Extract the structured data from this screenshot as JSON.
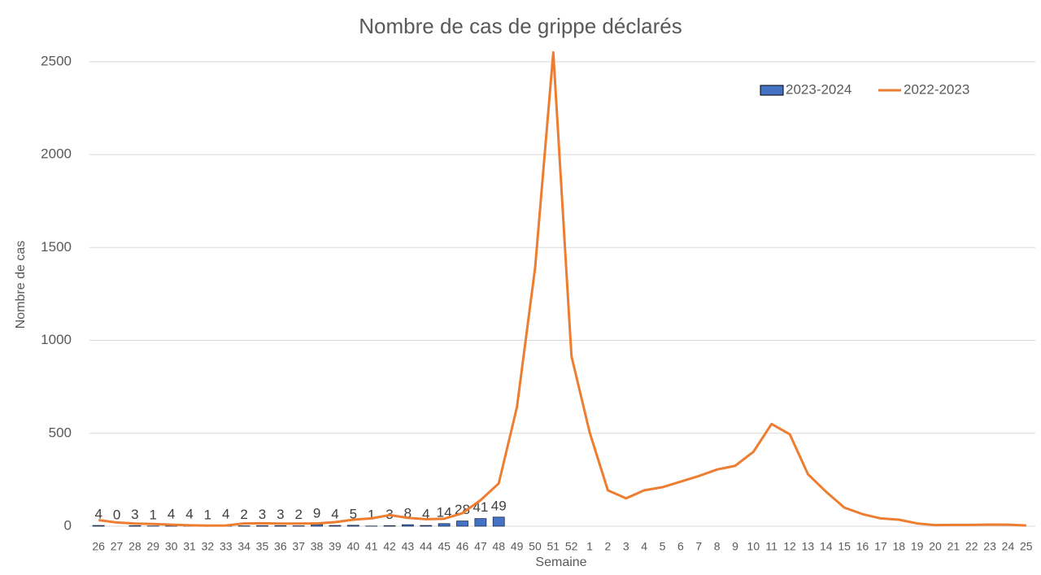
{
  "chart_data": {
    "type": "bar+line",
    "title": "Nombre de cas de grippe déclarés",
    "y_label": "Nombre de cas",
    "x_label": "Semaine",
    "categories": [
      "26",
      "27",
      "28",
      "29",
      "30",
      "31",
      "32",
      "33",
      "34",
      "35",
      "36",
      "37",
      "38",
      "39",
      "40",
      "41",
      "42",
      "43",
      "44",
      "45",
      "46",
      "47",
      "48",
      "49",
      "50",
      "51",
      "52",
      "1",
      "2",
      "3",
      "4",
      "5",
      "6",
      "7",
      "8",
      "9",
      "10",
      "11",
      "12",
      "13",
      "14",
      "15",
      "16",
      "17",
      "18",
      "19",
      "20",
      "21",
      "22",
      "23",
      "24",
      "25"
    ],
    "ylim": [
      0,
      2600
    ],
    "yticks": [
      0,
      500,
      1000,
      1500,
      2000,
      2500
    ],
    "grid": true,
    "legend": "top-right",
    "series": [
      {
        "name": "2023-2024",
        "kind": "bar",
        "color": "#4472c4",
        "values": [
          4,
          0,
          3,
          1,
          4,
          4,
          1,
          4,
          2,
          3,
          3,
          2,
          9,
          4,
          5,
          1,
          3,
          8,
          4,
          14,
          28,
          41,
          49,
          null,
          null,
          null,
          null,
          null,
          null,
          null,
          null,
          null,
          null,
          null,
          null,
          null,
          null,
          null,
          null,
          null,
          null,
          null,
          null,
          null,
          null,
          null,
          null,
          null,
          null,
          null,
          null,
          null
        ]
      },
      {
        "name": "2022-2023",
        "kind": "line",
        "color": "#ed7d31",
        "values": [
          33,
          20,
          14,
          12,
          8,
          5,
          3,
          4,
          15,
          16,
          14,
          14,
          15,
          22,
          35,
          42,
          60,
          45,
          38,
          40,
          70,
          140,
          230,
          640,
          1390,
          2550,
          915,
          505,
          193,
          150,
          193,
          210,
          240,
          270,
          305,
          325,
          400,
          550,
          495,
          280,
          185,
          100,
          65,
          42,
          35,
          15,
          6,
          7,
          7,
          9,
          8,
          4
        ]
      }
    ]
  }
}
